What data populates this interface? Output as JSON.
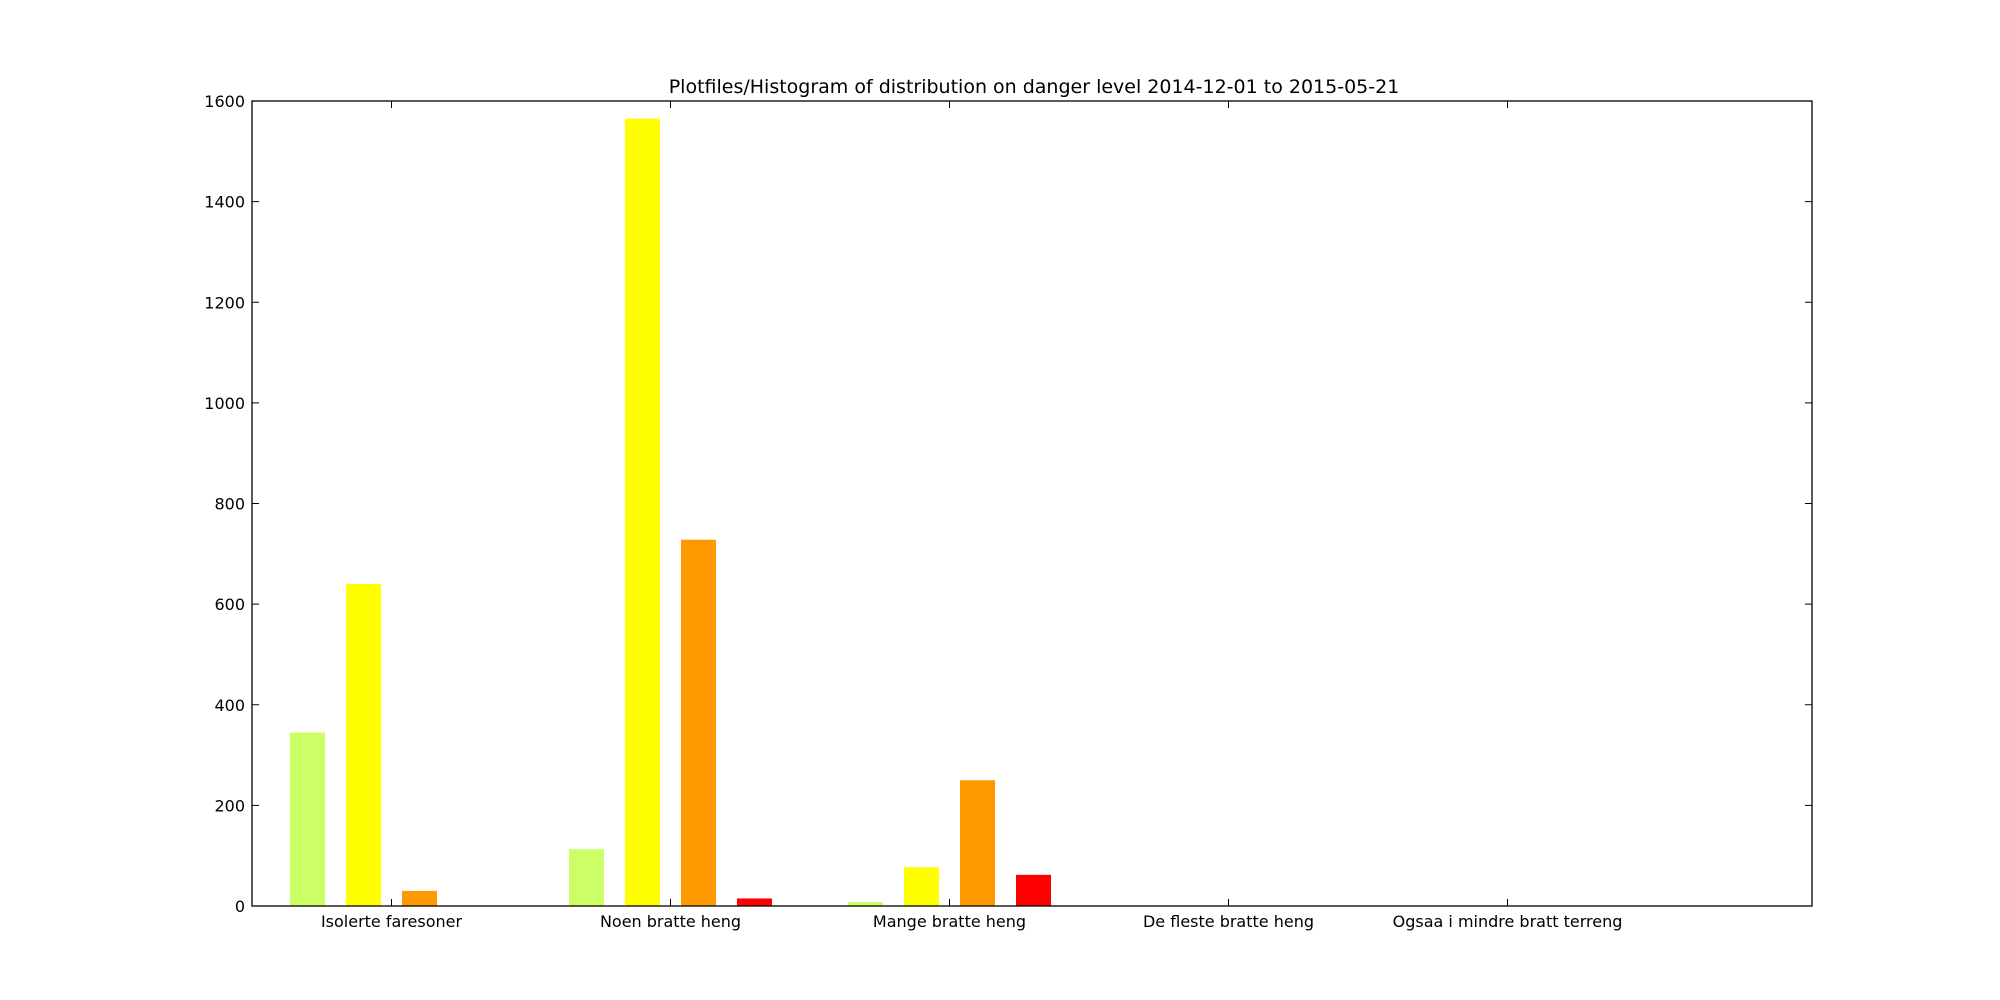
{
  "chart_data": {
    "type": "bar",
    "title": "Plotfiles/Histogram of distribution on danger level 2014-12-01 to 2015-05-21",
    "xlabel": "",
    "ylabel": "",
    "categories": [
      "Isolerte faresoner",
      "Noen bratte heng",
      "Mange bratte heng",
      "De fleste bratte heng",
      "Ogsaa i mindre bratt terreng"
    ],
    "series": [
      {
        "color": "#ccff66",
        "values": [
          345,
          113,
          8,
          0,
          0
        ]
      },
      {
        "color": "#ffff00",
        "values": [
          640,
          1565,
          77,
          0,
          0
        ]
      },
      {
        "color": "#ff9900",
        "values": [
          30,
          728,
          250,
          0,
          0
        ]
      },
      {
        "color": "#ff0000",
        "values": [
          0,
          15,
          62,
          0,
          0
        ]
      }
    ],
    "ylim": [
      0,
      1600
    ],
    "yticks": [
      0,
      200,
      400,
      600,
      800,
      1000,
      1200,
      1400,
      1600
    ],
    "grid": false,
    "legend": "none"
  }
}
